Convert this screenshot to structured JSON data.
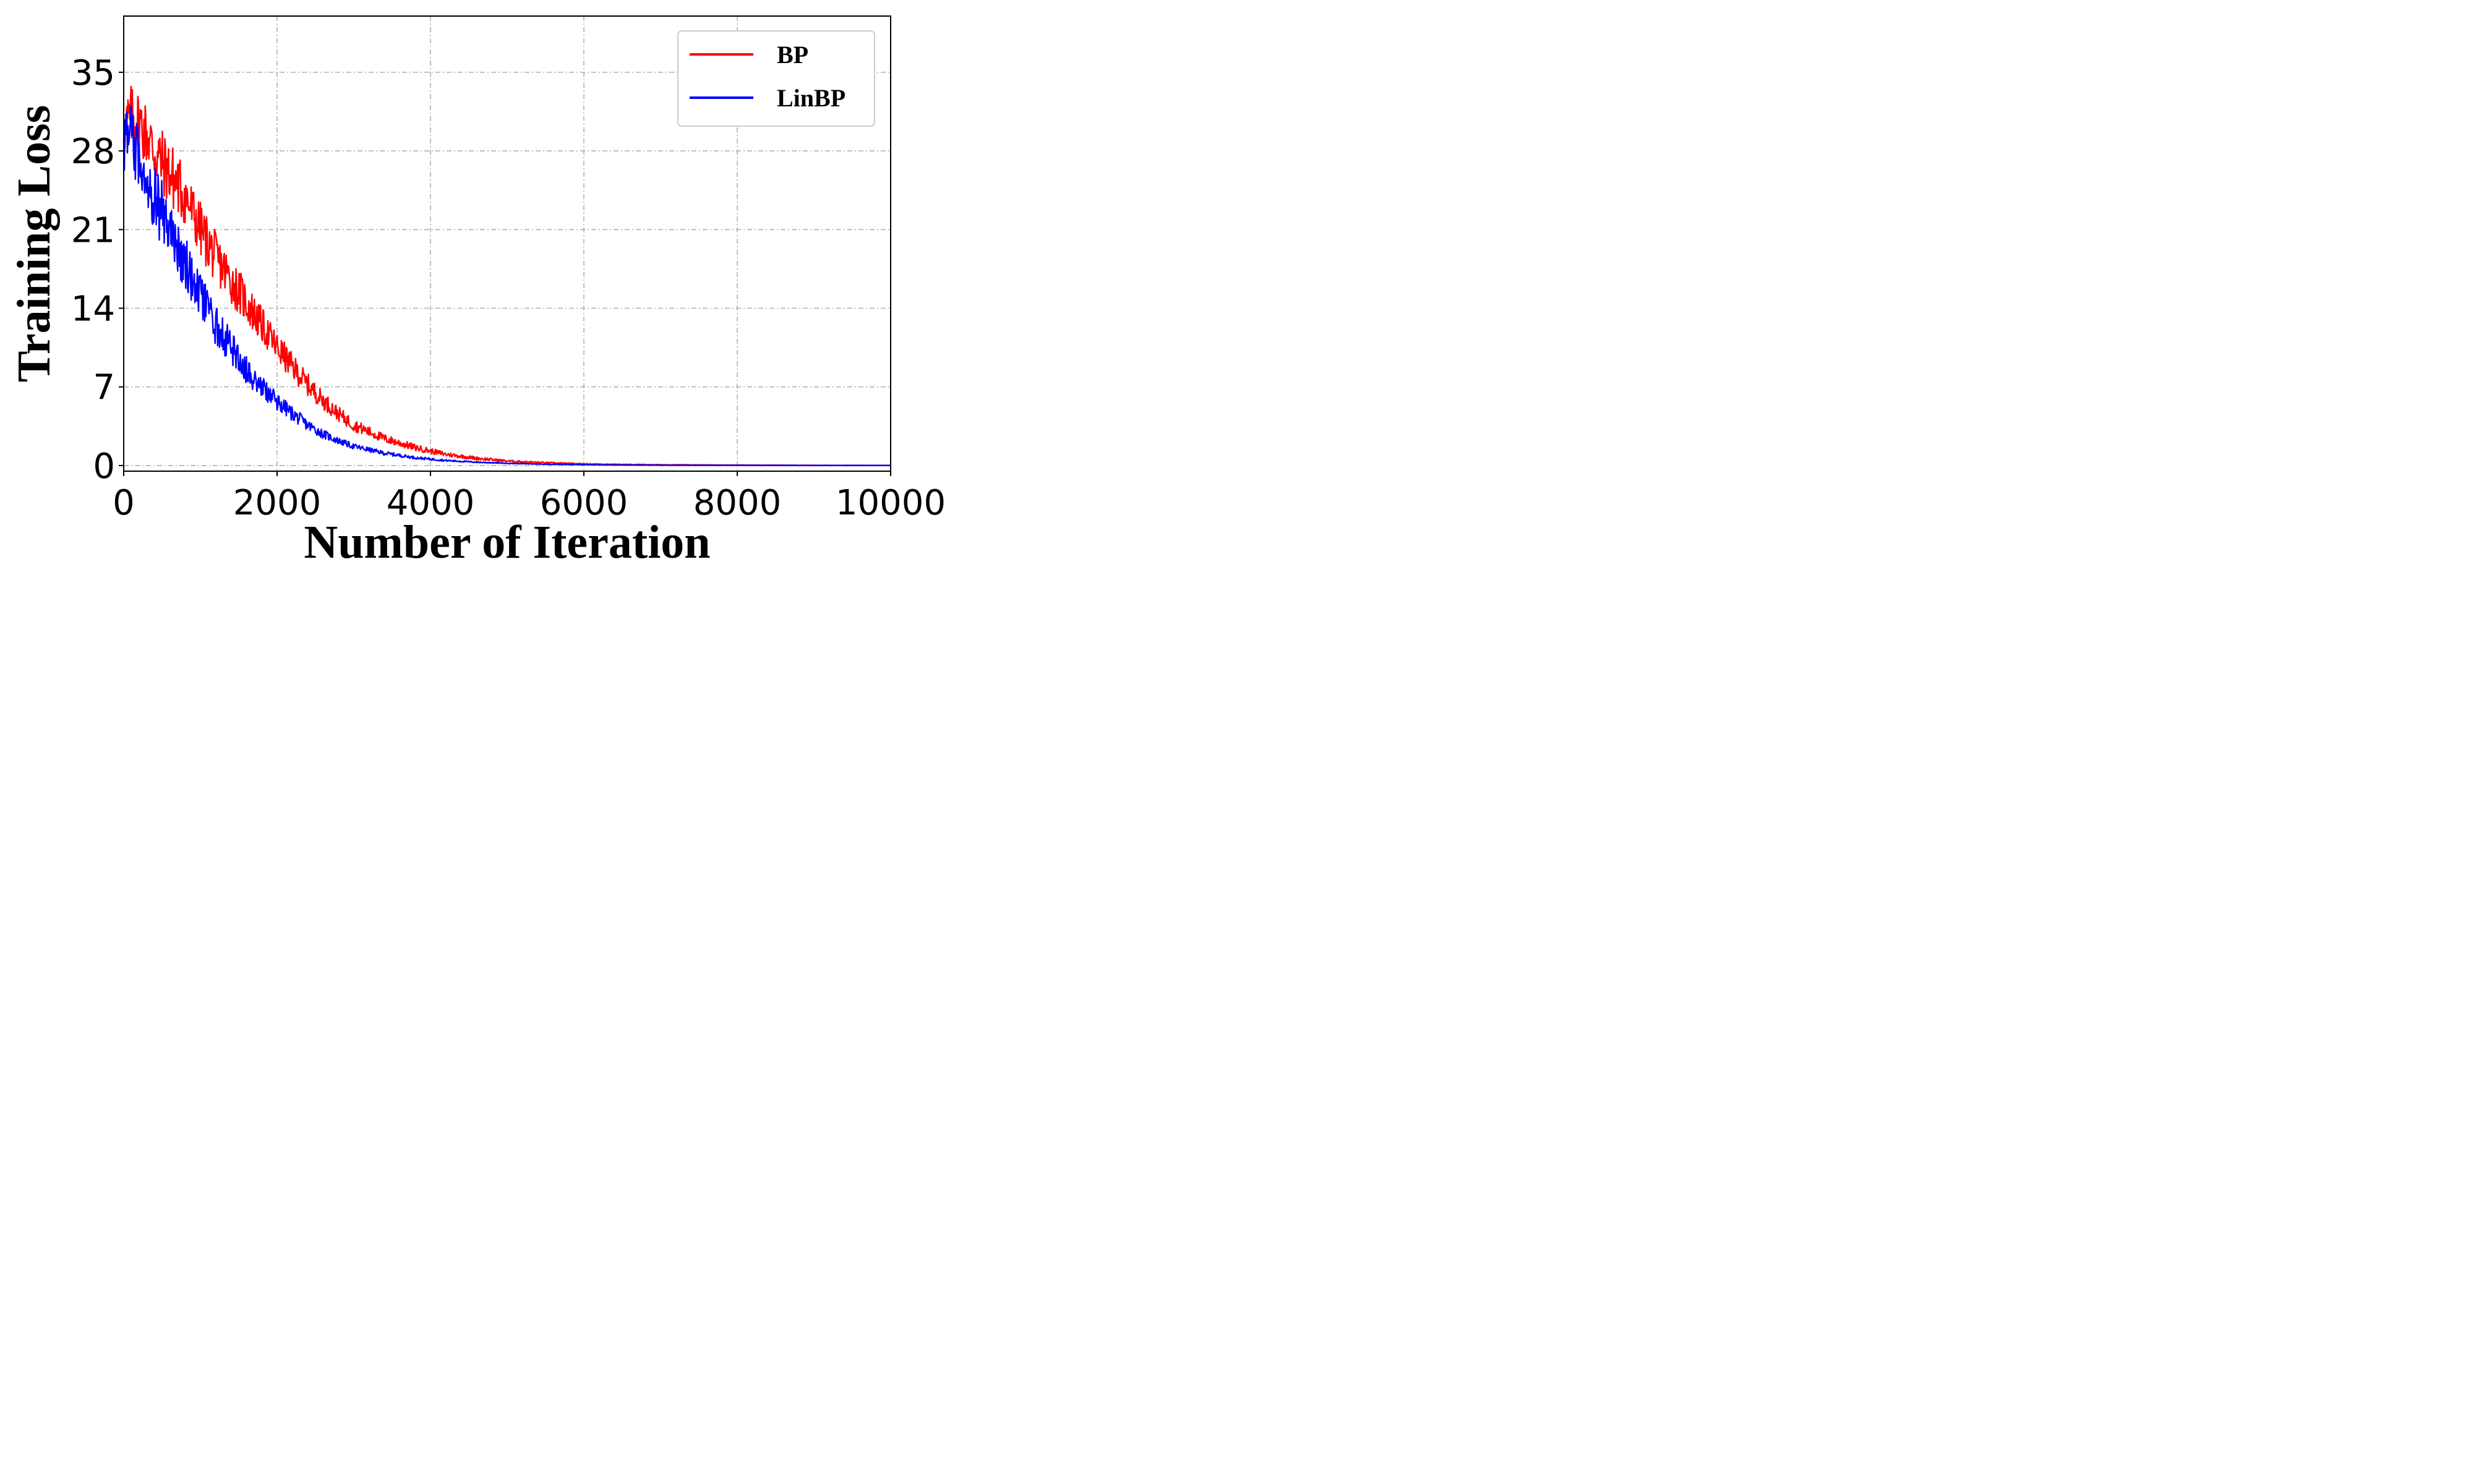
{
  "chart_data": {
    "type": "line",
    "title": "",
    "xlabel": "Number of Iteration",
    "ylabel": "Training Loss",
    "xlim": [
      0,
      10000
    ],
    "ylim": [
      -0.5,
      40
    ],
    "xticks": [
      0,
      2000,
      4000,
      6000,
      8000,
      10000
    ],
    "yticks": [
      0,
      7,
      14,
      21,
      28,
      35
    ],
    "grid": true,
    "legend_position": "top-right",
    "series": [
      {
        "name": "BP",
        "color": "#ff0000",
        "x": [
          0,
          100,
          200,
          300,
          400,
          500,
          600,
          700,
          800,
          900,
          1000,
          1200,
          1400,
          1600,
          1800,
          2000,
          2200,
          2400,
          2600,
          2800,
          3000,
          3400,
          3800,
          4200,
          4600,
          5000,
          5500,
          6000,
          6500,
          7000,
          8000,
          9000,
          10000
        ],
        "y": [
          30,
          31,
          30.5,
          29.5,
          28,
          27,
          26,
          25,
          24,
          22.5,
          21,
          18.5,
          16.5,
          14.5,
          12.5,
          10.5,
          8.8,
          7.2,
          5.8,
          4.6,
          3.6,
          2.4,
          1.6,
          1.0,
          0.65,
          0.4,
          0.25,
          0.15,
          0.1,
          0.07,
          0.04,
          0.02,
          0.01
        ],
        "noise": [
          2.5,
          3,
          3,
          3,
          3,
          3,
          3,
          3,
          2.8,
          2.6,
          2.5,
          2.3,
          2.1,
          1.9,
          1.6,
          1.4,
          1.2,
          1.0,
          0.8,
          0.65,
          0.55,
          0.4,
          0.3,
          0.2,
          0.15,
          0.1,
          0.06,
          0.04,
          0.03,
          0.02,
          0.01,
          0.01,
          0.01
        ]
      },
      {
        "name": "LinBP",
        "color": "#0000ff",
        "x": [
          0,
          100,
          200,
          300,
          400,
          500,
          600,
          700,
          800,
          900,
          1000,
          1200,
          1400,
          1600,
          1800,
          2000,
          2200,
          2400,
          2600,
          2800,
          3000,
          3400,
          3800,
          4200,
          4600,
          5000,
          5500,
          6000,
          6500,
          7000,
          8000,
          9000,
          10000
        ],
        "y": [
          29,
          29,
          27.5,
          26,
          24,
          22.5,
          21,
          19.5,
          18,
          16.5,
          15,
          12.5,
          10.5,
          8.5,
          7.0,
          5.7,
          4.6,
          3.6,
          2.8,
          2.2,
          1.7,
          1.1,
          0.7,
          0.45,
          0.3,
          0.2,
          0.12,
          0.08,
          0.05,
          0.03,
          0.02,
          0.01,
          0.01
        ],
        "noise": [
          3,
          3.2,
          3,
          3,
          3,
          3,
          2.8,
          2.6,
          2.4,
          2.2,
          2.0,
          1.8,
          1.5,
          1.2,
          1.0,
          0.8,
          0.65,
          0.5,
          0.4,
          0.3,
          0.25,
          0.18,
          0.12,
          0.08,
          0.05,
          0.03,
          0.02,
          0.015,
          0.01,
          0.01,
          0.01,
          0.01,
          0.01
        ]
      }
    ]
  }
}
